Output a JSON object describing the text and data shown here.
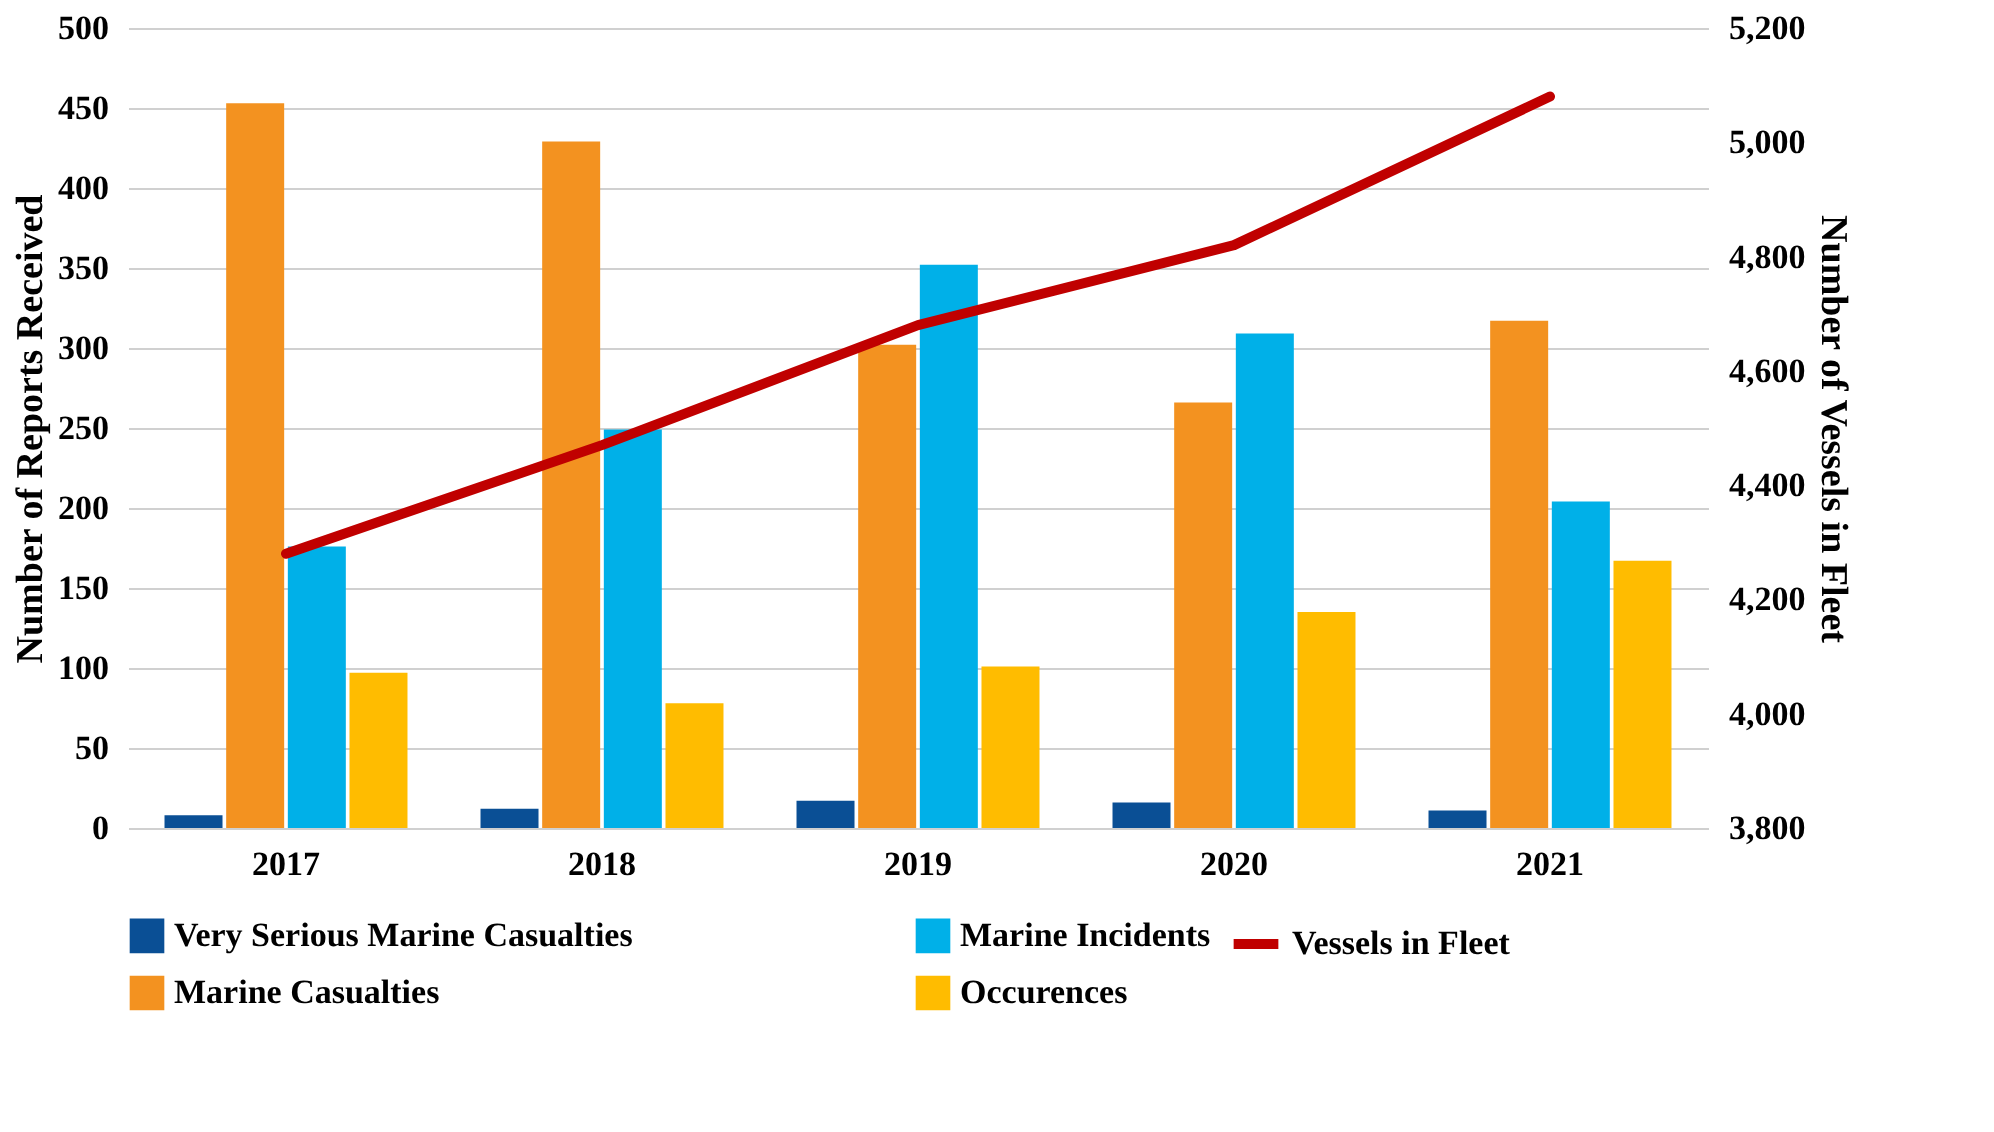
{
  "chart_data": {
    "type": "bar",
    "categories": [
      "2017",
      "2018",
      "2019",
      "2020",
      "2021"
    ],
    "ylabel": "Number of Reports Received",
    "y2label": "Number of Vessels in Fleet",
    "ylim": [
      0,
      500
    ],
    "yticks": [
      0,
      50,
      100,
      150,
      200,
      250,
      300,
      350,
      400,
      450,
      500
    ],
    "y2lim": [
      3800,
      5200
    ],
    "y2ticks": [
      {
        "value": 3800,
        "label": "3,800"
      },
      {
        "value": 4000,
        "label": "4,000"
      },
      {
        "value": 4200,
        "label": "4,200"
      },
      {
        "value": 4400,
        "label": "4,400"
      },
      {
        "value": 4600,
        "label": "4,600"
      },
      {
        "value": 4800,
        "label": "4,800"
      },
      {
        "value": 5000,
        "label": "5,000"
      },
      {
        "value": 5200,
        "label": "5,200"
      }
    ],
    "grid": "y",
    "legend": "bottom",
    "series": [
      {
        "name": "Very Serious Marine Casualties",
        "color": "#0a4f95",
        "values": [
          8,
          12,
          17,
          16,
          11
        ]
      },
      {
        "name": "Marine Casualties",
        "color": "#f39220",
        "values": [
          453,
          429,
          302,
          266,
          317
        ]
      },
      {
        "name": "Marine Incidents",
        "color": "#00b0e8",
        "values": [
          176,
          249,
          352,
          309,
          204
        ]
      },
      {
        "name": "Occurences",
        "color": "#ffbc00",
        "values": [
          97,
          78,
          101,
          135,
          167
        ]
      },
      {
        "name": "Vessels in Fleet",
        "color": "#c00000",
        "type": "line",
        "axis": "y2",
        "line_style": "solid",
        "marker": "none",
        "values": [
          4280,
          4470,
          4680,
          4820,
          5080
        ]
      }
    ]
  }
}
